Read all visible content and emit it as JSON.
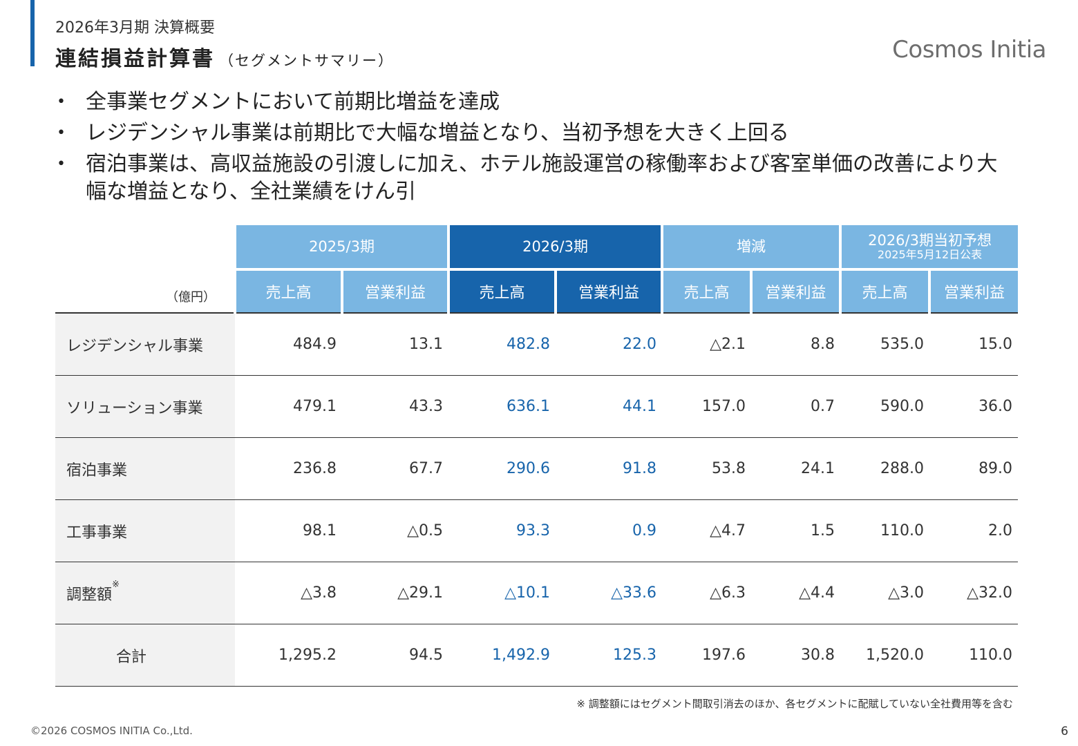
{
  "header": {
    "subtitle": "2026年3月期 決算概要",
    "title": "連結損益計算書",
    "title_suffix": "（セグメントサマリー）",
    "logo": "Cosmos Initia"
  },
  "bullets": [
    "全事業セグメントにおいて前期比増益を達成",
    "レジデンシャル事業は前期比で大幅な増益となり、当初予想を大きく上回る",
    "宿泊事業は、高収益施設の引渡しに加え、ホテル施設運営の稼働率および客室単価の改善により大幅な増益となり、全社業績をけん引"
  ],
  "bullet_marker": "•",
  "table": {
    "unit": "（億円）",
    "groups": [
      {
        "label": "2025/3期",
        "note": ""
      },
      {
        "label": "2026/3期",
        "note": ""
      },
      {
        "label": "増減",
        "note": ""
      },
      {
        "label": "2026/3期当初予想",
        "note": "2025年5月12日公表"
      }
    ],
    "subheaders": [
      "売上高",
      "営業利益",
      "売上高",
      "営業利益",
      "売上高",
      "営業利益",
      "売上高",
      "営業利益"
    ],
    "rows": [
      {
        "label": "レジデンシャル事業",
        "mark": "",
        "values": [
          "484.9",
          "13.1",
          "482.8",
          "22.0",
          "△2.1",
          "8.8",
          "535.0",
          "15.0"
        ]
      },
      {
        "label": "ソリューション事業",
        "mark": "",
        "values": [
          "479.1",
          "43.3",
          "636.1",
          "44.1",
          "157.0",
          "0.7",
          "590.0",
          "36.0"
        ]
      },
      {
        "label": "宿泊事業",
        "mark": "",
        "values": [
          "236.8",
          "67.7",
          "290.6",
          "91.8",
          "53.8",
          "24.1",
          "288.0",
          "89.0"
        ]
      },
      {
        "label": "工事事業",
        "mark": "",
        "values": [
          "98.1",
          "△0.5",
          "93.3",
          "0.9",
          "△4.7",
          "1.5",
          "110.0",
          "2.0"
        ]
      },
      {
        "label": "調整額",
        "mark": "※",
        "values": [
          "△3.8",
          "△29.1",
          "△10.1",
          "△33.6",
          "△6.3",
          "△4.4",
          "△3.0",
          "△32.0"
        ]
      },
      {
        "label": "合計",
        "mark": "",
        "values": [
          "1,295.2",
          "94.5",
          "1,492.9",
          "125.3",
          "197.6",
          "30.8",
          "1,520.0",
          "110.0"
        ]
      }
    ]
  },
  "colors": {
    "accent": "#1764ab",
    "header_light": "#7ab6e2",
    "label_bg": "#f2f2f2"
  },
  "footnote": "※ 調整額にはセグメント間取引消去のほか、各セグメントに配賦していない全社費用等を含む",
  "copyright": "©2026 COSMOS INITIA Co.,Ltd.",
  "page_number": "6"
}
